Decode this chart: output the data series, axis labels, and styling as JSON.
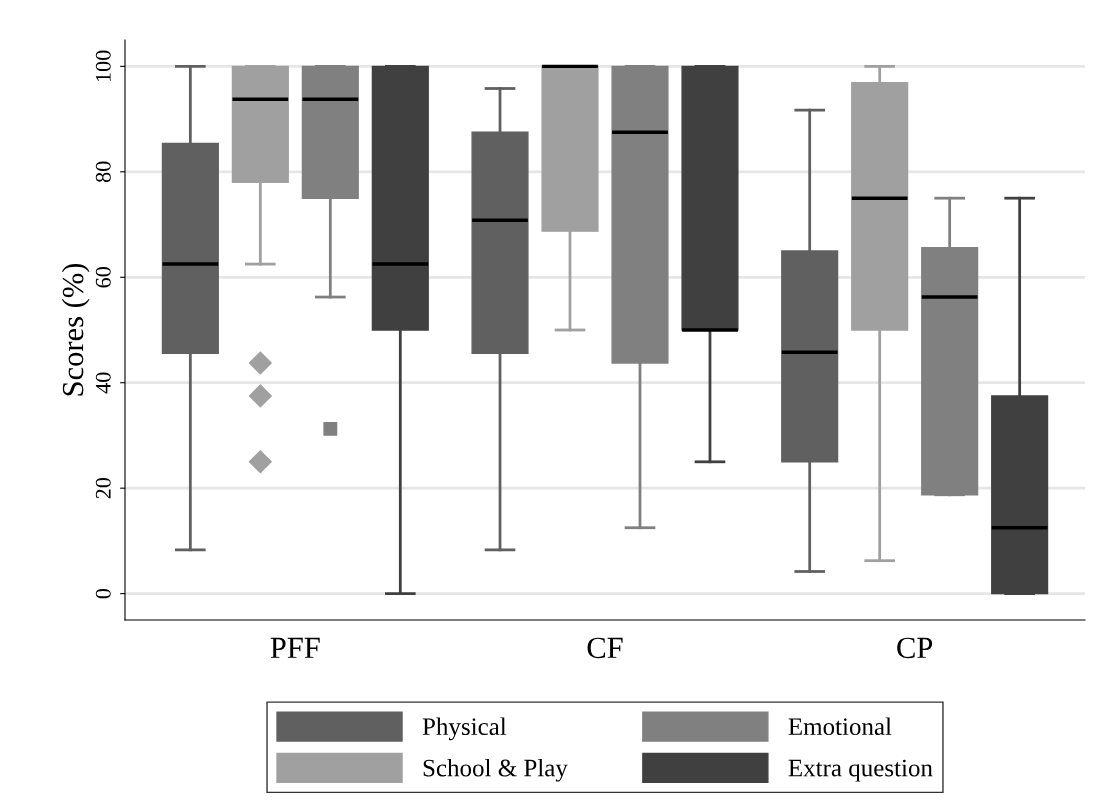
{
  "chart_data": {
    "type": "box",
    "ylabel": "Scores (%)",
    "categories": [
      "PFF",
      "CF",
      "CP"
    ],
    "ylim": [
      -5,
      105
    ],
    "yticks": [
      0,
      20,
      40,
      60,
      80,
      100
    ],
    "grid": "y",
    "legend": "bottom",
    "series": [
      {
        "name": "Physical",
        "color": "#606060",
        "boxes": [
          {
            "low": 8.3,
            "q1": 45.6,
            "median": 62.5,
            "q3": 85.4,
            "high": 100
          },
          {
            "low": 8.3,
            "q1": 45.6,
            "median": 70.8,
            "q3": 87.5,
            "high": 95.8
          },
          {
            "low": 4.2,
            "q1": 25,
            "median": 45.8,
            "q3": 65,
            "high": 91.7
          }
        ]
      },
      {
        "name": "School & Play",
        "color": "#a0a0a0",
        "marker": "diamond",
        "boxes": [
          {
            "low": 62.5,
            "q1": 78,
            "median": 93.75,
            "q3": 100,
            "high": 100,
            "outliers": [
              43.75,
              37.5,
              25
            ]
          },
          {
            "low": 50,
            "q1": 68.75,
            "median": 100,
            "q3": 100,
            "high": 100
          },
          {
            "low": 6.25,
            "q1": 50,
            "median": 75,
            "q3": 96.9,
            "high": 100
          }
        ]
      },
      {
        "name": "Emotional",
        "color": "#808080",
        "marker": "square",
        "boxes": [
          {
            "low": 56.25,
            "q1": 75,
            "median": 93.75,
            "q3": 100,
            "high": 100,
            "outliers": [
              31.25
            ]
          },
          {
            "low": 12.5,
            "q1": 43.75,
            "median": 87.5,
            "q3": 100,
            "high": 100
          },
          {
            "low": 18.75,
            "q1": 18.75,
            "median": 56.25,
            "q3": 65.6,
            "high": 75
          }
        ]
      },
      {
        "name": "Extra question",
        "color": "#404040",
        "boxes": [
          {
            "low": 0,
            "q1": 50,
            "median": 62.5,
            "q3": 100,
            "high": 100
          },
          {
            "low": 25,
            "q1": 50,
            "median": 50,
            "q3": 100,
            "high": 100
          },
          {
            "low": 0,
            "q1": 0,
            "median": 12.5,
            "q3": 37.5,
            "high": 75
          }
        ]
      }
    ]
  }
}
